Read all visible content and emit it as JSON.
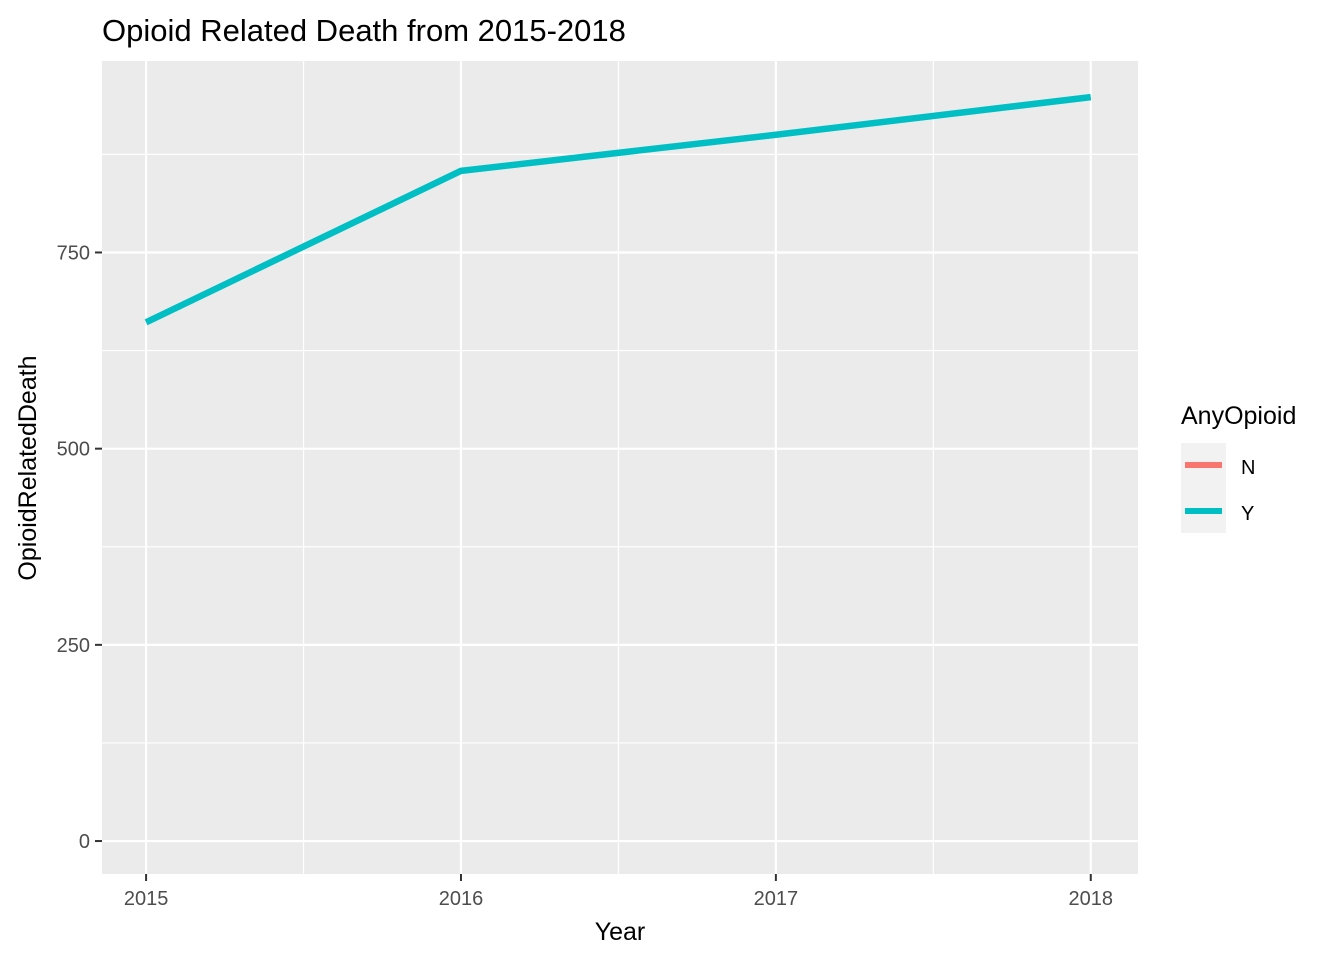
{
  "chart_data": {
    "type": "line",
    "title": "Opioid Related Death from 2015-2018",
    "xlabel": "Year",
    "ylabel": "OpioidRelatedDeath",
    "x": [
      2015,
      2016,
      2017,
      2018
    ],
    "x_tick_labels": [
      "2015",
      "2016",
      "2017",
      "2018"
    ],
    "y_ticks": [
      0,
      250,
      500,
      750
    ],
    "y_tick_labels": [
      "0",
      "250",
      "500",
      "750"
    ],
    "xlim": [
      2014.86,
      2018.15
    ],
    "ylim": [
      -42,
      994
    ],
    "grid": true,
    "legend": {
      "title": "AnyOpioid",
      "placement": "right",
      "entries": [
        {
          "label": "N",
          "color": "#F8766D"
        },
        {
          "label": "Y",
          "color": "#00BFC4"
        }
      ]
    },
    "series": [
      {
        "name": "N",
        "color": "#F8766D",
        "values": [
          null,
          null,
          null,
          null
        ]
      },
      {
        "name": "Y",
        "color": "#00BFC4",
        "values": [
          661,
          854,
          900,
          948
        ]
      }
    ]
  },
  "colors": {
    "panel_background": "#EBEBEB",
    "grid_major": "#FFFFFF",
    "tick_text": "#4D4D4D"
  }
}
